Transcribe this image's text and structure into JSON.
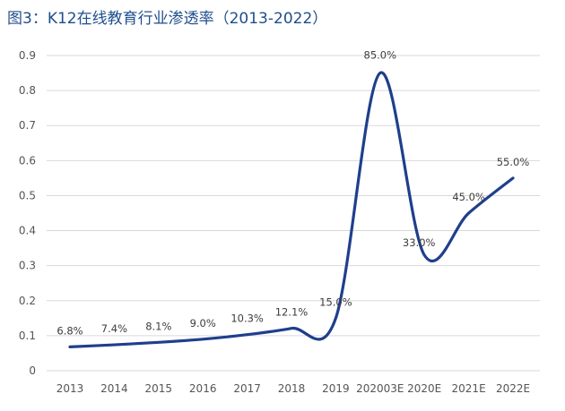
{
  "title": {
    "prefix": "图3：",
    "text": "K12在线教育行业渗透率（2013-2022）"
  },
  "chart_data": {
    "type": "line",
    "categories": [
      "2013",
      "2014",
      "2015",
      "2016",
      "2017",
      "2018",
      "2019",
      "202003E",
      "2020E",
      "2021E",
      "2022E"
    ],
    "series": [
      {
        "values": [
          0.068,
          0.074,
          0.081,
          0.09,
          0.103,
          0.121,
          0.15,
          0.85,
          0.33,
          0.45,
          0.55
        ],
        "data_labels": [
          "6.8%",
          "7.4%",
          "8.1%",
          "9.0%",
          "10.3%",
          "12.1%",
          "15.0%",
          "85.0%",
          "33.0%",
          "45.0%",
          "55.0%"
        ]
      }
    ],
    "ylim": [
      0,
      0.9
    ],
    "yticks": [
      "0",
      "0.1",
      "0.2",
      "0.3",
      "0.4",
      "0.5",
      "0.6",
      "0.7",
      "0.8",
      "0.9"
    ],
    "grid": true,
    "line_color": "#1f3f8c",
    "smooth": true
  }
}
